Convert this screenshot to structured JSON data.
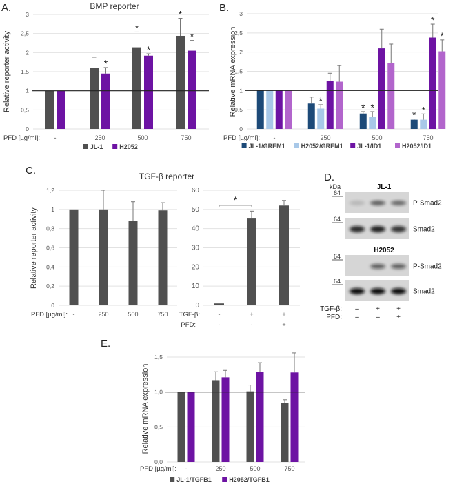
{
  "panels": {
    "a": "A.",
    "b": "B.",
    "c": "C.",
    "d": "D.",
    "e": "E."
  },
  "pfd_label": "PFD [µg/ml]:",
  "chart_data": [
    {
      "type": "bar",
      "title": "BMP reporter",
      "ylabel": "Relative reporter activity",
      "ylim": [
        0,
        3
      ],
      "yticks": [
        0,
        0.5,
        1,
        1.5,
        2,
        2.5,
        3
      ],
      "ytick_labels": [
        "0",
        "0,5",
        "1",
        "1,5",
        "2",
        "2,5",
        "3"
      ],
      "categories": [
        "-",
        "250",
        "500",
        "750"
      ],
      "reference_line": 1,
      "legend": "bottom",
      "series": [
        {
          "name": "JL-1",
          "color": "#505050",
          "values": [
            1,
            1.6,
            2.14,
            2.44
          ],
          "errors": [
            0,
            0.28,
            0.4,
            0.46
          ],
          "significant": [
            false,
            false,
            true,
            true
          ]
        },
        {
          "name": "H2052",
          "color": "#6d13a3",
          "values": [
            1,
            1.45,
            1.92,
            2.05
          ],
          "errors": [
            0,
            0.16,
            0.05,
            0.27
          ],
          "significant": [
            false,
            true,
            true,
            true
          ]
        }
      ]
    },
    {
      "type": "bar",
      "title": "",
      "ylabel": "Relative mRNA expression",
      "ylim": [
        0,
        3
      ],
      "yticks": [
        0,
        0.5,
        1,
        1.5,
        2,
        2.5,
        3
      ],
      "ytick_labels": [
        "0",
        "0,5",
        "1",
        "1,5",
        "2",
        "2,5",
        "3"
      ],
      "categories": [
        "-",
        "250",
        "500",
        "750"
      ],
      "reference_line": 1,
      "legend": "bottom",
      "series": [
        {
          "name": "JL-1/GREM1",
          "color": "#1d4a78",
          "values": [
            1,
            0.66,
            0.4,
            0.24
          ],
          "errors": [
            0,
            0.17,
            0.05,
            0.02
          ],
          "significant": [
            false,
            false,
            true,
            true
          ]
        },
        {
          "name": "H2052/GREM1",
          "color": "#a8c8e8",
          "values": [
            1,
            0.53,
            0.32,
            0.24
          ],
          "errors": [
            0,
            0.1,
            0.13,
            0.15
          ],
          "significant": [
            false,
            true,
            true,
            true
          ]
        },
        {
          "name": "JL-1/ID1",
          "color": "#6d13a3",
          "values": [
            1,
            1.25,
            2.1,
            2.38
          ],
          "errors": [
            0,
            0.2,
            0.5,
            0.35
          ],
          "significant": [
            false,
            false,
            false,
            true
          ]
        },
        {
          "name": "H2052/ID1",
          "color": "#b265cc",
          "values": [
            1,
            1.23,
            1.71,
            2.02
          ],
          "errors": [
            0,
            0.42,
            0.5,
            0.3
          ],
          "significant": [
            false,
            false,
            false,
            true
          ]
        }
      ]
    },
    {
      "type": "bar",
      "title": "TGF-β reporter",
      "ylabel": "Relative reporter activity",
      "ylim": [
        0,
        1.2
      ],
      "yticks": [
        0,
        0.2,
        0.4,
        0.6,
        0.8,
        1,
        1.2
      ],
      "ytick_labels": [
        "0",
        "0,2",
        "0,4",
        "0,6",
        "0,8",
        "1",
        "1,2"
      ],
      "categories": [
        "-",
        "250",
        "500",
        "750"
      ],
      "series": [
        {
          "name": "PFD",
          "color": "#505050",
          "values": [
            1,
            1,
            0.88,
            0.99
          ],
          "errors": [
            0,
            0.2,
            0.2,
            0.08
          ],
          "significant": [
            false,
            false,
            false,
            false
          ]
        }
      ]
    },
    {
      "type": "bar",
      "title": "",
      "ylabel": "",
      "ylim": [
        0,
        60
      ],
      "yticks": [
        0,
        10,
        20,
        30,
        40,
        50,
        60
      ],
      "ytick_labels": [
        "0",
        "10",
        "20",
        "30",
        "40",
        "50",
        "60"
      ],
      "row_labels": [
        "TGF-β:",
        "PFD:"
      ],
      "categories": [
        [
          "-",
          "-"
        ],
        [
          "+",
          "-"
        ],
        [
          "+",
          "+"
        ]
      ],
      "bracket": {
        "from": 0,
        "to": 1,
        "label": "*"
      },
      "series": [
        {
          "name": "TGF-β",
          "color": "#505050",
          "values": [
            1,
            45.6,
            52
          ],
          "errors": [
            0,
            3.5,
            2.7
          ],
          "significant": [
            false,
            false,
            false
          ]
        }
      ]
    },
    {
      "type": "bar",
      "title": "",
      "ylabel": "Relative mRNA expression",
      "ylim": [
        0,
        1.5
      ],
      "yticks": [
        0,
        0.5,
        1,
        1.5
      ],
      "ytick_labels": [
        "0,0",
        "0,5",
        "1,0",
        "1,5"
      ],
      "categories": [
        "-",
        "250",
        "500",
        "750"
      ],
      "reference_line": 1,
      "legend": "bottom",
      "series": [
        {
          "name": "JL-1/TGFB1",
          "color": "#505050",
          "values": [
            1,
            1.17,
            1.01,
            0.84
          ],
          "errors": [
            0,
            0.12,
            0.09,
            0.05
          ],
          "significant": [
            false,
            false,
            false,
            false
          ]
        },
        {
          "name": "H2052/TGFB1",
          "color": "#6d13a3",
          "values": [
            1,
            1.21,
            1.29,
            1.28
          ],
          "errors": [
            0,
            0.1,
            0.13,
            0.28
          ],
          "significant": [
            false,
            false,
            false,
            false
          ]
        }
      ]
    }
  ],
  "blot": {
    "kda": "kDa",
    "marker": "64",
    "groups": [
      {
        "name": "JL-1",
        "rows": [
          {
            "label": "P-Smad2",
            "intensity": [
              0.15,
              0.6,
              0.55
            ]
          },
          {
            "label": "Smad2",
            "intensity": [
              0.85,
              0.9,
              0.8
            ]
          }
        ]
      },
      {
        "name": "H2052",
        "rows": [
          {
            "label": "P-Smad2",
            "intensity": [
              0.02,
              0.6,
              0.6
            ]
          },
          {
            "label": "Smad2",
            "intensity": [
              1,
              1,
              1
            ]
          }
        ]
      }
    ],
    "conditions": [
      {
        "label": "TGF-β:",
        "values": [
          "–",
          "+",
          "+"
        ]
      },
      {
        "label": "PFD:",
        "values": [
          "–",
          "–",
          "+"
        ]
      }
    ]
  }
}
